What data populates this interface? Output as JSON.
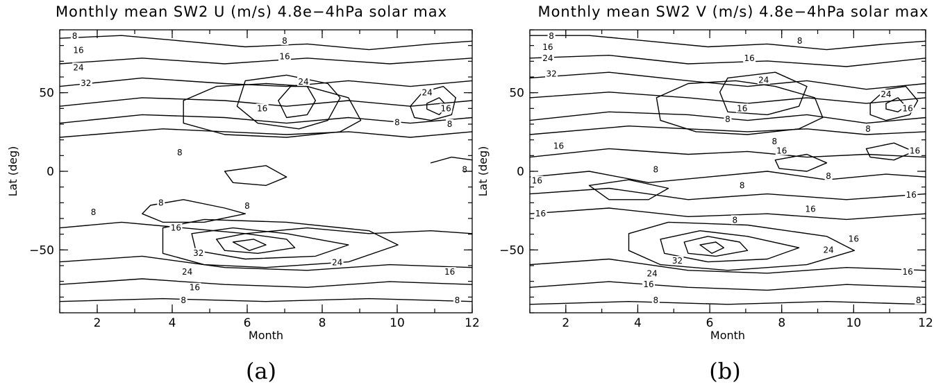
{
  "chart_data": [
    {
      "type": "contour",
      "title": "Monthly mean SW2 U (m/s) 4.8e−4hPa solar max",
      "xlabel": "Month",
      "ylabel": "Lat (deg)",
      "xlim": [
        1,
        12
      ],
      "ylim": [
        -90,
        90
      ],
      "xticks": [
        2,
        4,
        6,
        8,
        10,
        12
      ],
      "yticks": [
        50,
        0,
        -50
      ],
      "contour_levels": [
        8,
        16,
        24,
        32
      ],
      "contour_labels": [
        {
          "text": "8",
          "x": 1.4,
          "y": 86
        },
        {
          "text": "16",
          "x": 1.5,
          "y": 77
        },
        {
          "text": "24",
          "x": 1.5,
          "y": 66
        },
        {
          "text": "32",
          "x": 1.7,
          "y": 56
        },
        {
          "text": "8",
          "x": 7.0,
          "y": 83
        },
        {
          "text": "16",
          "x": 7.0,
          "y": 73
        },
        {
          "text": "24",
          "x": 7.5,
          "y": 57
        },
        {
          "text": "16",
          "x": 6.4,
          "y": 40
        },
        {
          "text": "8",
          "x": 10.0,
          "y": 31
        },
        {
          "text": "24",
          "x": 10.8,
          "y": 50
        },
        {
          "text": "16",
          "x": 11.3,
          "y": 40
        },
        {
          "text": "8",
          "x": 11.4,
          "y": 30
        },
        {
          "text": "8",
          "x": 4.2,
          "y": 12
        },
        {
          "text": "8",
          "x": 11.8,
          "y": 1
        },
        {
          "text": "8",
          "x": 3.7,
          "y": -20
        },
        {
          "text": "8",
          "x": 1.9,
          "y": -26
        },
        {
          "text": "8",
          "x": 6.0,
          "y": -22
        },
        {
          "text": "16",
          "x": 4.1,
          "y": -36
        },
        {
          "text": "32",
          "x": 4.7,
          "y": -52
        },
        {
          "text": "24",
          "x": 4.4,
          "y": -64
        },
        {
          "text": "24",
          "x": 8.4,
          "y": -58
        },
        {
          "text": "16",
          "x": 4.6,
          "y": -74
        },
        {
          "text": "16",
          "x": 11.4,
          "y": -64
        },
        {
          "text": "8",
          "x": 4.3,
          "y": -82
        },
        {
          "text": "8",
          "x": 11.6,
          "y": -82
        }
      ]
    },
    {
      "type": "contour",
      "title": "Monthly mean SW2 V (m/s) 4.8e−4hPa solar max",
      "xlabel": "Month",
      "ylabel": "Lat (deg)",
      "xlim": [
        1,
        12
      ],
      "ylim": [
        -90,
        90
      ],
      "xticks": [
        2,
        4,
        6,
        8,
        10,
        12
      ],
      "yticks": [
        50,
        0,
        -50
      ],
      "contour_levels": [
        8,
        16,
        24,
        32
      ],
      "contour_labels": [
        {
          "text": "8",
          "x": 1.6,
          "y": 86
        },
        {
          "text": "16",
          "x": 1.5,
          "y": 79
        },
        {
          "text": "24",
          "x": 1.5,
          "y": 72
        },
        {
          "text": "32",
          "x": 1.6,
          "y": 62
        },
        {
          "text": "8",
          "x": 8.5,
          "y": 83
        },
        {
          "text": "16",
          "x": 7.1,
          "y": 72
        },
        {
          "text": "24",
          "x": 7.5,
          "y": 58
        },
        {
          "text": "16",
          "x": 6.9,
          "y": 40
        },
        {
          "text": "8",
          "x": 6.5,
          "y": 33
        },
        {
          "text": "8",
          "x": 10.4,
          "y": 27
        },
        {
          "text": "24",
          "x": 10.9,
          "y": 49
        },
        {
          "text": "16",
          "x": 11.5,
          "y": 40
        },
        {
          "text": "16",
          "x": 1.8,
          "y": 16
        },
        {
          "text": "8",
          "x": 7.8,
          "y": 19
        },
        {
          "text": "16",
          "x": 8.0,
          "y": 13
        },
        {
          "text": "16",
          "x": 11.7,
          "y": 13
        },
        {
          "text": "8",
          "x": 4.5,
          "y": 1
        },
        {
          "text": "16",
          "x": 1.2,
          "y": -6
        },
        {
          "text": "8",
          "x": 9.3,
          "y": -3
        },
        {
          "text": "8",
          "x": 6.9,
          "y": -9
        },
        {
          "text": "16",
          "x": 11.6,
          "y": -15
        },
        {
          "text": "16",
          "x": 8.8,
          "y": -24
        },
        {
          "text": "16",
          "x": 1.3,
          "y": -27
        },
        {
          "text": "8",
          "x": 6.7,
          "y": -31
        },
        {
          "text": "16",
          "x": 10.0,
          "y": -43
        },
        {
          "text": "24",
          "x": 9.3,
          "y": -50
        },
        {
          "text": "32",
          "x": 5.1,
          "y": -57
        },
        {
          "text": "24",
          "x": 4.4,
          "y": -65
        },
        {
          "text": "16",
          "x": 4.3,
          "y": -72
        },
        {
          "text": "16",
          "x": 11.5,
          "y": -64
        },
        {
          "text": "8",
          "x": 4.5,
          "y": -82
        },
        {
          "text": "8",
          "x": 11.8,
          "y": -82
        }
      ]
    }
  ],
  "panels": [
    {
      "panel_label": "(a)"
    },
    {
      "panel_label": "(b)"
    }
  ]
}
